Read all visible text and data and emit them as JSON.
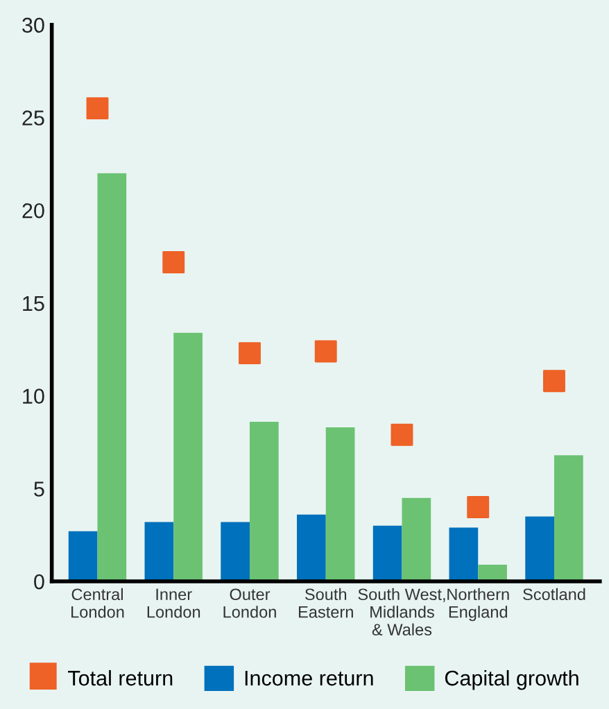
{
  "chart_data": {
    "type": "bar",
    "categories": [
      "Central\nLondon",
      "Inner\nLondon",
      "Outer\nLondon",
      "South\nEastern",
      "South West,\nMidlands\n& Wales",
      "Northern\nEngland",
      "Scotland"
    ],
    "series": [
      {
        "name": "Total return",
        "type": "scatter",
        "marker": "square",
        "color": "#ee6127",
        "values": [
          25.5,
          17.2,
          12.3,
          12.4,
          7.9,
          4.0,
          10.8
        ]
      },
      {
        "name": "Income return",
        "color": "#0071bc",
        "values": [
          2.7,
          3.2,
          3.2,
          3.6,
          3.0,
          2.9,
          3.5
        ]
      },
      {
        "name": "Capital growth",
        "color": "#6bc272",
        "values": [
          22.0,
          13.4,
          8.6,
          8.3,
          4.5,
          0.9,
          6.8
        ]
      }
    ],
    "ylim": [
      0,
      30
    ],
    "yticks": [
      0,
      5,
      10,
      15,
      20,
      25,
      30
    ],
    "grid": false,
    "legend": "bottom"
  }
}
